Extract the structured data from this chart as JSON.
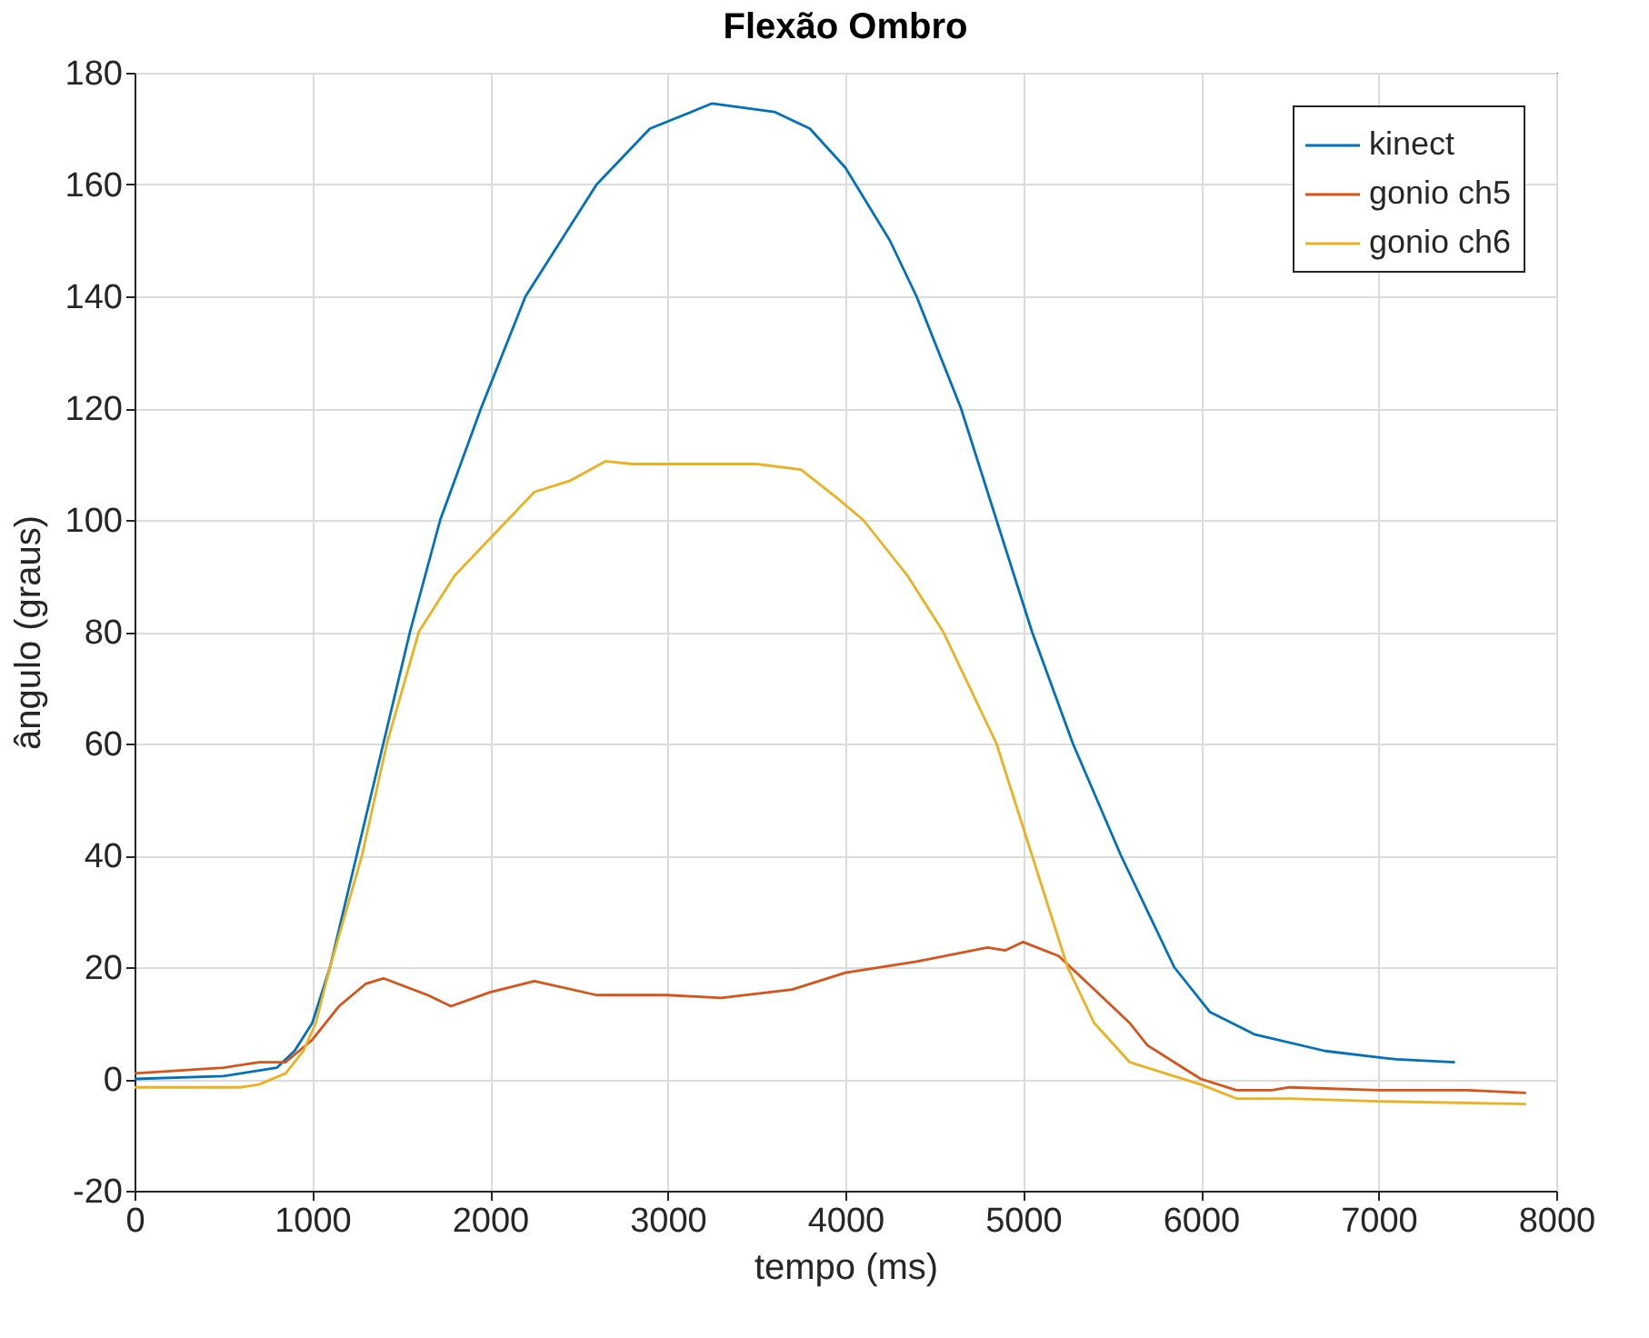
{
  "chart_data": {
    "type": "line",
    "title": "Flexão Ombro",
    "xlabel": "tempo (ms)",
    "ylabel": "ângulo (graus)",
    "xlim": [
      0,
      8000
    ],
    "xticks": [
      0,
      1000,
      2000,
      3000,
      4000,
      5000,
      6000,
      7000,
      8000
    ],
    "ylim": [
      -20,
      180
    ],
    "yticks": [
      -20,
      0,
      20,
      40,
      60,
      80,
      100,
      120,
      140,
      160,
      180
    ],
    "grid": true,
    "legend": "top right",
    "line_style": "solid",
    "marker": "none",
    "series": [
      {
        "name": "kinect",
        "color": "#0072bd",
        "x": [
          0,
          500,
          800,
          900,
          1000,
          1100,
          1250,
          1400,
          1550,
          1720,
          1950,
          2200,
          2600,
          2900,
          3250,
          3600,
          3800,
          4000,
          4250,
          4400,
          4650,
          4850,
          5050,
          5280,
          5550,
          5850,
          6050,
          6300,
          6700,
          7100,
          7430
        ],
        "values": [
          0,
          0.5,
          2,
          5,
          10,
          20,
          40,
          60,
          80,
          100,
          120,
          140,
          160,
          170,
          174.5,
          173,
          170,
          163,
          150,
          140,
          120,
          100,
          80,
          60,
          40,
          20,
          12,
          8,
          5,
          3.5,
          3
        ]
      },
      {
        "name": "gonio ch5",
        "color": "#d95319",
        "x": [
          0,
          500,
          700,
          850,
          1000,
          1150,
          1300,
          1400,
          1650,
          1780,
          2000,
          2250,
          2600,
          3000,
          3300,
          3700,
          4000,
          4400,
          4800,
          4900,
          5000,
          5200,
          5400,
          5600,
          5700,
          5900,
          6000,
          6200,
          6400,
          6500,
          7000,
          7500,
          7830
        ],
        "values": [
          1,
          2,
          3,
          3,
          7,
          13,
          17,
          18,
          15,
          13,
          15.5,
          17.5,
          15,
          15,
          14.5,
          16,
          19,
          21,
          23.5,
          23,
          24.5,
          22,
          16,
          10,
          6,
          2,
          0,
          -2,
          -2,
          -1.5,
          -2,
          -2,
          -2.5
        ]
      },
      {
        "name": "gonio ch6",
        "color": "#edb120",
        "x": [
          0,
          600,
          700,
          850,
          950,
          1020,
          1100,
          1280,
          1420,
          1600,
          1800,
          2100,
          2250,
          2450,
          2650,
          2800,
          3500,
          3750,
          3950,
          4100,
          4350,
          4550,
          4850,
          5050,
          5250,
          5400,
          5600,
          5800,
          6000,
          6200,
          6500,
          7000,
          7830
        ],
        "values": [
          -1.5,
          -1.5,
          -1,
          1,
          5,
          10,
          20,
          40,
          60,
          80,
          90,
          100,
          105,
          107,
          110.5,
          110,
          110,
          109,
          104,
          100,
          90,
          80,
          60,
          40,
          20,
          10,
          3,
          1,
          -1,
          -3.5,
          -3.5,
          -4,
          -4.5
        ]
      }
    ]
  }
}
